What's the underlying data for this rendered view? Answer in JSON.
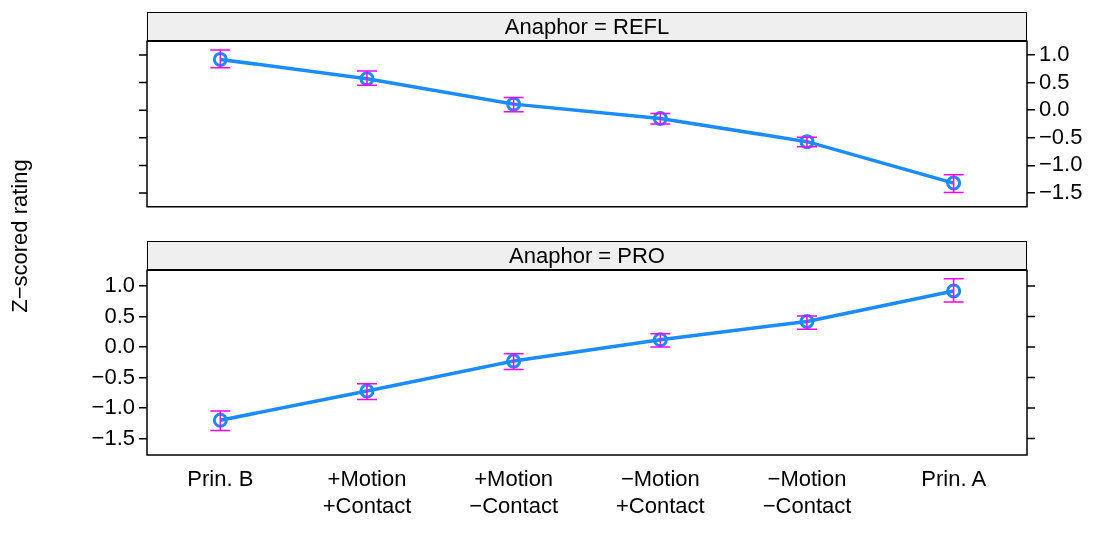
{
  "chart_data": [
    {
      "type": "line",
      "title": "Anaphor = REFL",
      "categories": [
        null,
        null,
        null,
        null,
        null,
        null
      ],
      "series": [
        {
          "color": "#1a8cff",
          "values": [
            0.92,
            0.57,
            0.11,
            -0.15,
            -0.57,
            -1.32
          ],
          "errors": [
            [
              0.77,
              1.09
            ],
            [
              0.45,
              0.71
            ],
            [
              -0.03,
              0.23
            ],
            [
              -0.25,
              -0.06
            ],
            [
              -0.66,
              -0.49
            ],
            [
              -1.49,
              -1.17
            ]
          ]
        }
      ],
      "ylim": [
        -1.75,
        1.25
      ],
      "yticks": [
        {
          "value": -1.5,
          "label": "−1.5"
        },
        {
          "value": -1,
          "label": "−1.0"
        },
        {
          "value": -0.5,
          "label": "−0.5"
        },
        {
          "value": 0,
          "label": "0.0"
        },
        {
          "value": 0.5,
          "label": "0.5"
        },
        {
          "value": 1,
          "label": "1.0"
        }
      ],
      "tick_labels": "y",
      "grid": false,
      "legend": false,
      "marker": "circle",
      "line_style": "solid"
    },
    {
      "type": "line",
      "title": "Anaphor = PRO",
      "ylabel": "Z−scored rating",
      "categories": [
        "Prin. B",
        "+Motion\n+Contact",
        "+Motion\n−Contact",
        "−Motion\n+Contact",
        "−Motion\n−Contact",
        "Prin. A"
      ],
      "series": [
        {
          "color": "#1a8cff",
          "values": [
            -1.2,
            -0.72,
            -0.23,
            0.12,
            0.42,
            0.92
          ],
          "errors": [
            [
              -1.37,
              -1.05
            ],
            [
              -0.86,
              -0.6
            ],
            [
              -0.37,
              -0.11
            ],
            [
              0.0,
              0.22
            ],
            [
              0.29,
              0.51
            ],
            [
              0.74,
              1.12
            ]
          ]
        }
      ],
      "ylim": [
        -1.77,
        1.26
      ],
      "yticks": [
        {
          "value": -1.5,
          "label": "−1.5"
        },
        {
          "value": -1,
          "label": "−1.0"
        },
        {
          "value": -0.5,
          "label": "−0.5"
        },
        {
          "value": 0,
          "label": "0.0"
        },
        {
          "value": 0.5,
          "label": "0.5"
        },
        {
          "value": 1,
          "label": "1.0"
        }
      ],
      "grid": false,
      "legend": false,
      "marker": "circle",
      "line_style": "solid"
    }
  ]
}
